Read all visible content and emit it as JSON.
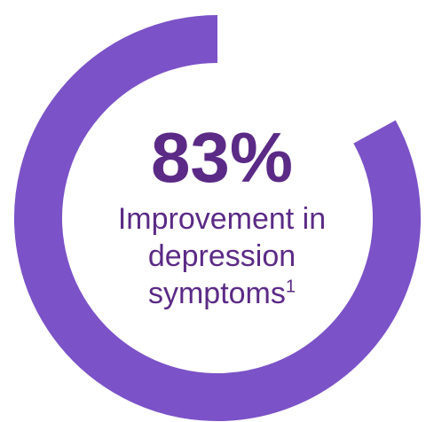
{
  "chart_data": {
    "type": "pie",
    "variant": "donut",
    "value": 83,
    "unit": "%",
    "value_label": "83%",
    "caption_lines": [
      "Improvement in",
      "depression",
      "symptoms"
    ],
    "footnote": "1"
  },
  "colors": {
    "ring": "#7B52C7",
    "text": "#5B2A86",
    "background": "#FFFFFF"
  }
}
